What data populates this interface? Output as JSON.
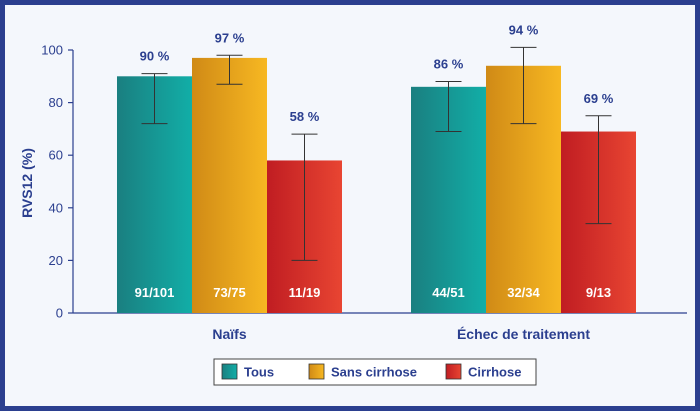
{
  "colors": {
    "axis": "#2b3f8f",
    "frame": "#2b3f8f",
    "background": "#f4f7fc"
  },
  "legend": {
    "position": "bottom-center",
    "items": [
      {
        "label": "Tous",
        "color_start": "#1a7f80",
        "color_end": "#12aea7"
      },
      {
        "label": "Sans cirrhose",
        "color_start": "#d08a16",
        "color_end": "#f7b822"
      },
      {
        "label": "Cirrhose",
        "color_start": "#c01d22",
        "color_end": "#e84532"
      }
    ]
  },
  "chart_data": {
    "type": "bar",
    "title": "",
    "xlabel": "",
    "ylabel": "RVS12 (%)",
    "ylim": [
      0,
      100
    ],
    "yticks": [
      0,
      20,
      40,
      60,
      80,
      100
    ],
    "grid": false,
    "categories": [
      "Naïfs",
      "Échec de traitement"
    ],
    "series": [
      {
        "name": "Tous",
        "values": [
          90,
          86
        ],
        "value_labels": [
          "90 %",
          "86 %"
        ],
        "counts": [
          "91/101",
          "44/51"
        ],
        "error_low": [
          72,
          69
        ],
        "error_high": [
          91,
          88
        ]
      },
      {
        "name": "Sans cirrhose",
        "values": [
          97,
          94
        ],
        "value_labels": [
          "97 %",
          "94 %"
        ],
        "counts": [
          "73/75",
          "32/34"
        ],
        "error_low": [
          87,
          72
        ],
        "error_high": [
          98,
          101
        ]
      },
      {
        "name": "Cirrhose",
        "values": [
          58,
          69
        ],
        "value_labels": [
          "58 %",
          "69 %"
        ],
        "counts": [
          "11/19",
          "9/13"
        ],
        "error_low": [
          20,
          34
        ],
        "error_high": [
          68,
          75
        ]
      }
    ]
  }
}
